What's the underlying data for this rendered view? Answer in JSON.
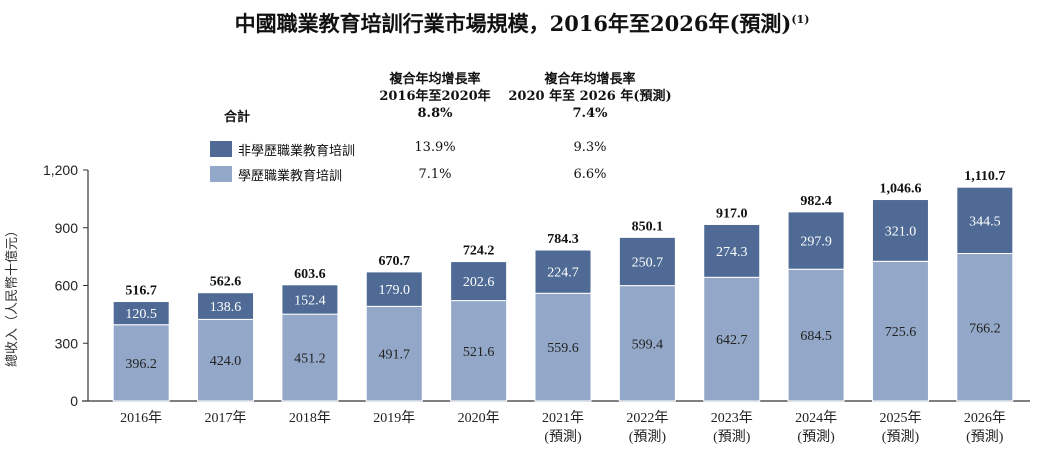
{
  "chart_data": {
    "type": "bar",
    "stacked": true,
    "title": "中國職業教育培訓行業市場規模，2016年至2026年(預測)",
    "title_note": "(1)",
    "ylabel": "總收入（人民幣十億元）",
    "ylim": [
      0,
      1200
    ],
    "yticks": [
      "0",
      "300",
      "600",
      "900",
      "1,200"
    ],
    "ytick_values": [
      0,
      300,
      600,
      900,
      1200
    ],
    "grid": false,
    "categories": [
      "2016年",
      "2017年",
      "2018年",
      "2019年",
      "2020年",
      "2021年",
      "2022年",
      "2023年",
      "2024年",
      "2025年",
      "2026年"
    ],
    "category_notes": [
      "",
      "",
      "",
      "",
      "",
      "(預測)",
      "(預測)",
      "(預測)",
      "(預測)",
      "(預測)",
      "(預測)"
    ],
    "series": [
      {
        "name": "學歷職業教育培訓",
        "color": "#93a8c8",
        "values": [
          396.2,
          424.0,
          451.2,
          491.7,
          521.6,
          559.6,
          599.4,
          642.7,
          684.5,
          725.6,
          766.2
        ],
        "labels": [
          "396.2",
          "424.0",
          "451.2",
          "491.7",
          "521.6",
          "559.6",
          "599.4",
          "642.7",
          "684.5",
          "725.6",
          "766.2"
        ]
      },
      {
        "name": "非學歷職業教育培訓",
        "color": "#4e6a95",
        "values": [
          120.5,
          138.6,
          152.4,
          179.0,
          202.6,
          224.7,
          250.7,
          274.3,
          297.9,
          321.0,
          344.5
        ],
        "labels": [
          "120.5",
          "138.6",
          "152.4",
          "179.0",
          "202.6",
          "224.7",
          "250.7",
          "274.3",
          "297.9",
          "321.0",
          "344.5"
        ]
      }
    ],
    "totals": [
      516.7,
      562.6,
      603.6,
      670.7,
      724.2,
      784.3,
      850.1,
      917.0,
      982.4,
      1046.6,
      1110.7
    ],
    "total_labels": [
      "516.7",
      "562.6",
      "603.6",
      "670.7",
      "724.2",
      "784.3",
      "850.1",
      "917.0",
      "982.4",
      "1,046.6",
      "1,110.7"
    ],
    "legend_placement": "top-left"
  },
  "cagr_table": {
    "col1_header": [
      "複合年均增長率",
      "2016年至2020年"
    ],
    "col2_header": [
      "複合年均增長率",
      "2020 年至 2026 年(預測)"
    ],
    "total_label": "合計",
    "total": [
      "8.8%",
      "7.4%"
    ],
    "non_academic": {
      "label": "非學歷職業教育培訓",
      "values": [
        "13.9%",
        "9.3%"
      ]
    },
    "academic": {
      "label": "學歷職業教育培訓",
      "values": [
        "7.1%",
        "6.6%"
      ]
    }
  }
}
